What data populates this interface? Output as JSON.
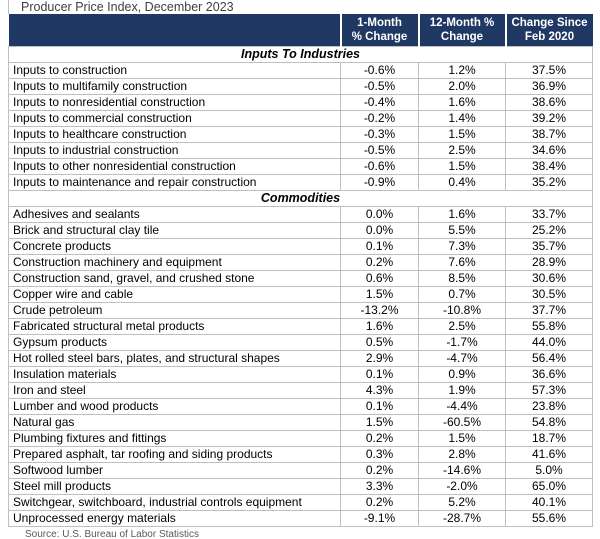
{
  "title": "Producer Price Index, December 2023",
  "source_note": "Source: U.S. Bureau of Labor Statistics",
  "header": {
    "columns": [
      {
        "line1": "1-Month",
        "line2": "% Change"
      },
      {
        "line1": "12-Month %",
        "line2": "Change"
      },
      {
        "line1": "Change Since",
        "line2": "Feb 2020"
      }
    ]
  },
  "colors": {
    "header_bg": "#1F3864",
    "header_text": "#FFFFFF",
    "grid_line": "#BFBFBF",
    "title_text": "#3F3F3F",
    "source_text": "#595959"
  },
  "chart_data": {
    "type": "table",
    "title": "Producer Price Index, December 2023",
    "columns": [
      "",
      "1-Month % Change",
      "12-Month % Change",
      "Change Since Feb 2020"
    ],
    "sections": [
      {
        "label": "Inputs To Industries",
        "rows": [
          {
            "name": "Inputs to construction",
            "one_month": "-0.6%",
            "twelve_month": "1.2%",
            "since_feb_2020": "37.5%"
          },
          {
            "name": "Inputs to multifamily construction",
            "one_month": "-0.5%",
            "twelve_month": "2.0%",
            "since_feb_2020": "36.9%"
          },
          {
            "name": "Inputs to nonresidential construction",
            "one_month": "-0.4%",
            "twelve_month": "1.6%",
            "since_feb_2020": "38.6%"
          },
          {
            "name": "Inputs to commercial construction",
            "one_month": "-0.2%",
            "twelve_month": "1.4%",
            "since_feb_2020": "39.2%"
          },
          {
            "name": "Inputs to healthcare construction",
            "one_month": "-0.3%",
            "twelve_month": "1.5%",
            "since_feb_2020": "38.7%"
          },
          {
            "name": "Inputs to industrial construction",
            "one_month": "-0.5%",
            "twelve_month": "2.5%",
            "since_feb_2020": "34.6%"
          },
          {
            "name": "Inputs to other nonresidential construction",
            "one_month": "-0.6%",
            "twelve_month": "1.5%",
            "since_feb_2020": "38.4%"
          },
          {
            "name": "Inputs to maintenance and repair construction",
            "one_month": "-0.9%",
            "twelve_month": "0.4%",
            "since_feb_2020": "35.2%"
          }
        ]
      },
      {
        "label": "Commodities",
        "rows": [
          {
            "name": "Adhesives and sealants",
            "one_month": "0.0%",
            "twelve_month": "1.6%",
            "since_feb_2020": "33.7%"
          },
          {
            "name": "Brick and structural clay tile",
            "one_month": "0.0%",
            "twelve_month": "5.5%",
            "since_feb_2020": "25.2%"
          },
          {
            "name": "Concrete products",
            "one_month": "0.1%",
            "twelve_month": "7.3%",
            "since_feb_2020": "35.7%"
          },
          {
            "name": "Construction machinery and equipment",
            "one_month": "0.2%",
            "twelve_month": "7.6%",
            "since_feb_2020": "28.9%"
          },
          {
            "name": "Construction sand, gravel, and crushed stone",
            "one_month": "0.6%",
            "twelve_month": "8.5%",
            "since_feb_2020": "30.6%"
          },
          {
            "name": "Copper wire and cable",
            "one_month": "1.5%",
            "twelve_month": "0.7%",
            "since_feb_2020": "30.5%"
          },
          {
            "name": "Crude petroleum",
            "one_month": "-13.2%",
            "twelve_month": "-10.8%",
            "since_feb_2020": "37.7%"
          },
          {
            "name": "Fabricated structural metal products",
            "one_month": "1.6%",
            "twelve_month": "2.5%",
            "since_feb_2020": "55.8%"
          },
          {
            "name": "Gypsum products",
            "one_month": "0.5%",
            "twelve_month": "-1.7%",
            "since_feb_2020": "44.0%"
          },
          {
            "name": "Hot rolled steel bars, plates, and structural shapes",
            "one_month": "2.9%",
            "twelve_month": "-4.7%",
            "since_feb_2020": "56.4%"
          },
          {
            "name": "Insulation materials",
            "one_month": "0.1%",
            "twelve_month": "0.9%",
            "since_feb_2020": "36.6%"
          },
          {
            "name": "Iron and steel",
            "one_month": "4.3%",
            "twelve_month": "1.9%",
            "since_feb_2020": "57.3%"
          },
          {
            "name": "Lumber and wood products",
            "one_month": "0.1%",
            "twelve_month": "-4.4%",
            "since_feb_2020": "23.8%"
          },
          {
            "name": "Natural gas",
            "one_month": "1.5%",
            "twelve_month": "-60.5%",
            "since_feb_2020": "54.8%"
          },
          {
            "name": "Plumbing fixtures and fittings",
            "one_month": "0.2%",
            "twelve_month": "1.5%",
            "since_feb_2020": "18.7%"
          },
          {
            "name": "Prepared asphalt, tar roofing and siding products",
            "one_month": "0.3%",
            "twelve_month": "2.8%",
            "since_feb_2020": "41.6%"
          },
          {
            "name": "Softwood lumber",
            "one_month": "0.2%",
            "twelve_month": "-14.6%",
            "since_feb_2020": "5.0%"
          },
          {
            "name": "Steel mill products",
            "one_month": "3.3%",
            "twelve_month": "-2.0%",
            "since_feb_2020": "65.0%"
          },
          {
            "name": "Switchgear, switchboard, industrial controls equipment",
            "one_month": "0.2%",
            "twelve_month": "5.2%",
            "since_feb_2020": "40.1%"
          },
          {
            "name": "Unprocessed energy materials",
            "one_month": "-9.1%",
            "twelve_month": "-28.7%",
            "since_feb_2020": "55.6%"
          }
        ]
      }
    ]
  }
}
